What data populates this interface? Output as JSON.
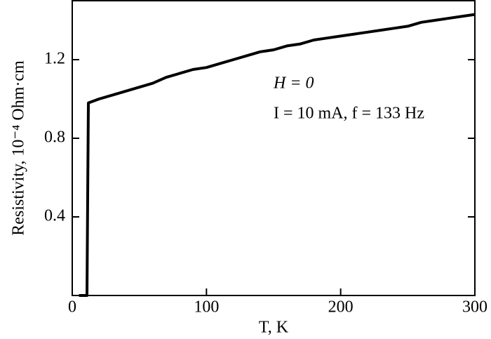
{
  "chart_data": {
    "type": "line",
    "x_label": "T, K",
    "y_label": "Resistivity,  10⁻⁴ Ohm·cm",
    "annotations": [
      "H = 0",
      "I = 10 mA, f = 133 Hz"
    ],
    "x": [
      5,
      8,
      11,
      11.5,
      12,
      20,
      30,
      40,
      50,
      60,
      70,
      80,
      90,
      100,
      110,
      120,
      130,
      140,
      150,
      160,
      170,
      180,
      190,
      200,
      210,
      220,
      230,
      240,
      250,
      260,
      270,
      280,
      290,
      300
    ],
    "series": [
      {
        "color": "#000000",
        "values": [
          0,
          0,
          0,
          0.5,
          0.98,
          1.0,
          1.02,
          1.04,
          1.06,
          1.08,
          1.11,
          1.13,
          1.15,
          1.16,
          1.18,
          1.2,
          1.22,
          1.24,
          1.25,
          1.27,
          1.28,
          1.3,
          1.31,
          1.32,
          1.33,
          1.34,
          1.35,
          1.36,
          1.37,
          1.39,
          1.4,
          1.41,
          1.42,
          1.43
        ]
      }
    ],
    "xlim": [
      0,
      300
    ],
    "xticks": [
      0,
      100,
      200,
      300
    ],
    "ylim": [
      0,
      1.5
    ],
    "yticks": [
      0.4,
      0.8,
      1.2
    ],
    "grid": false
  }
}
